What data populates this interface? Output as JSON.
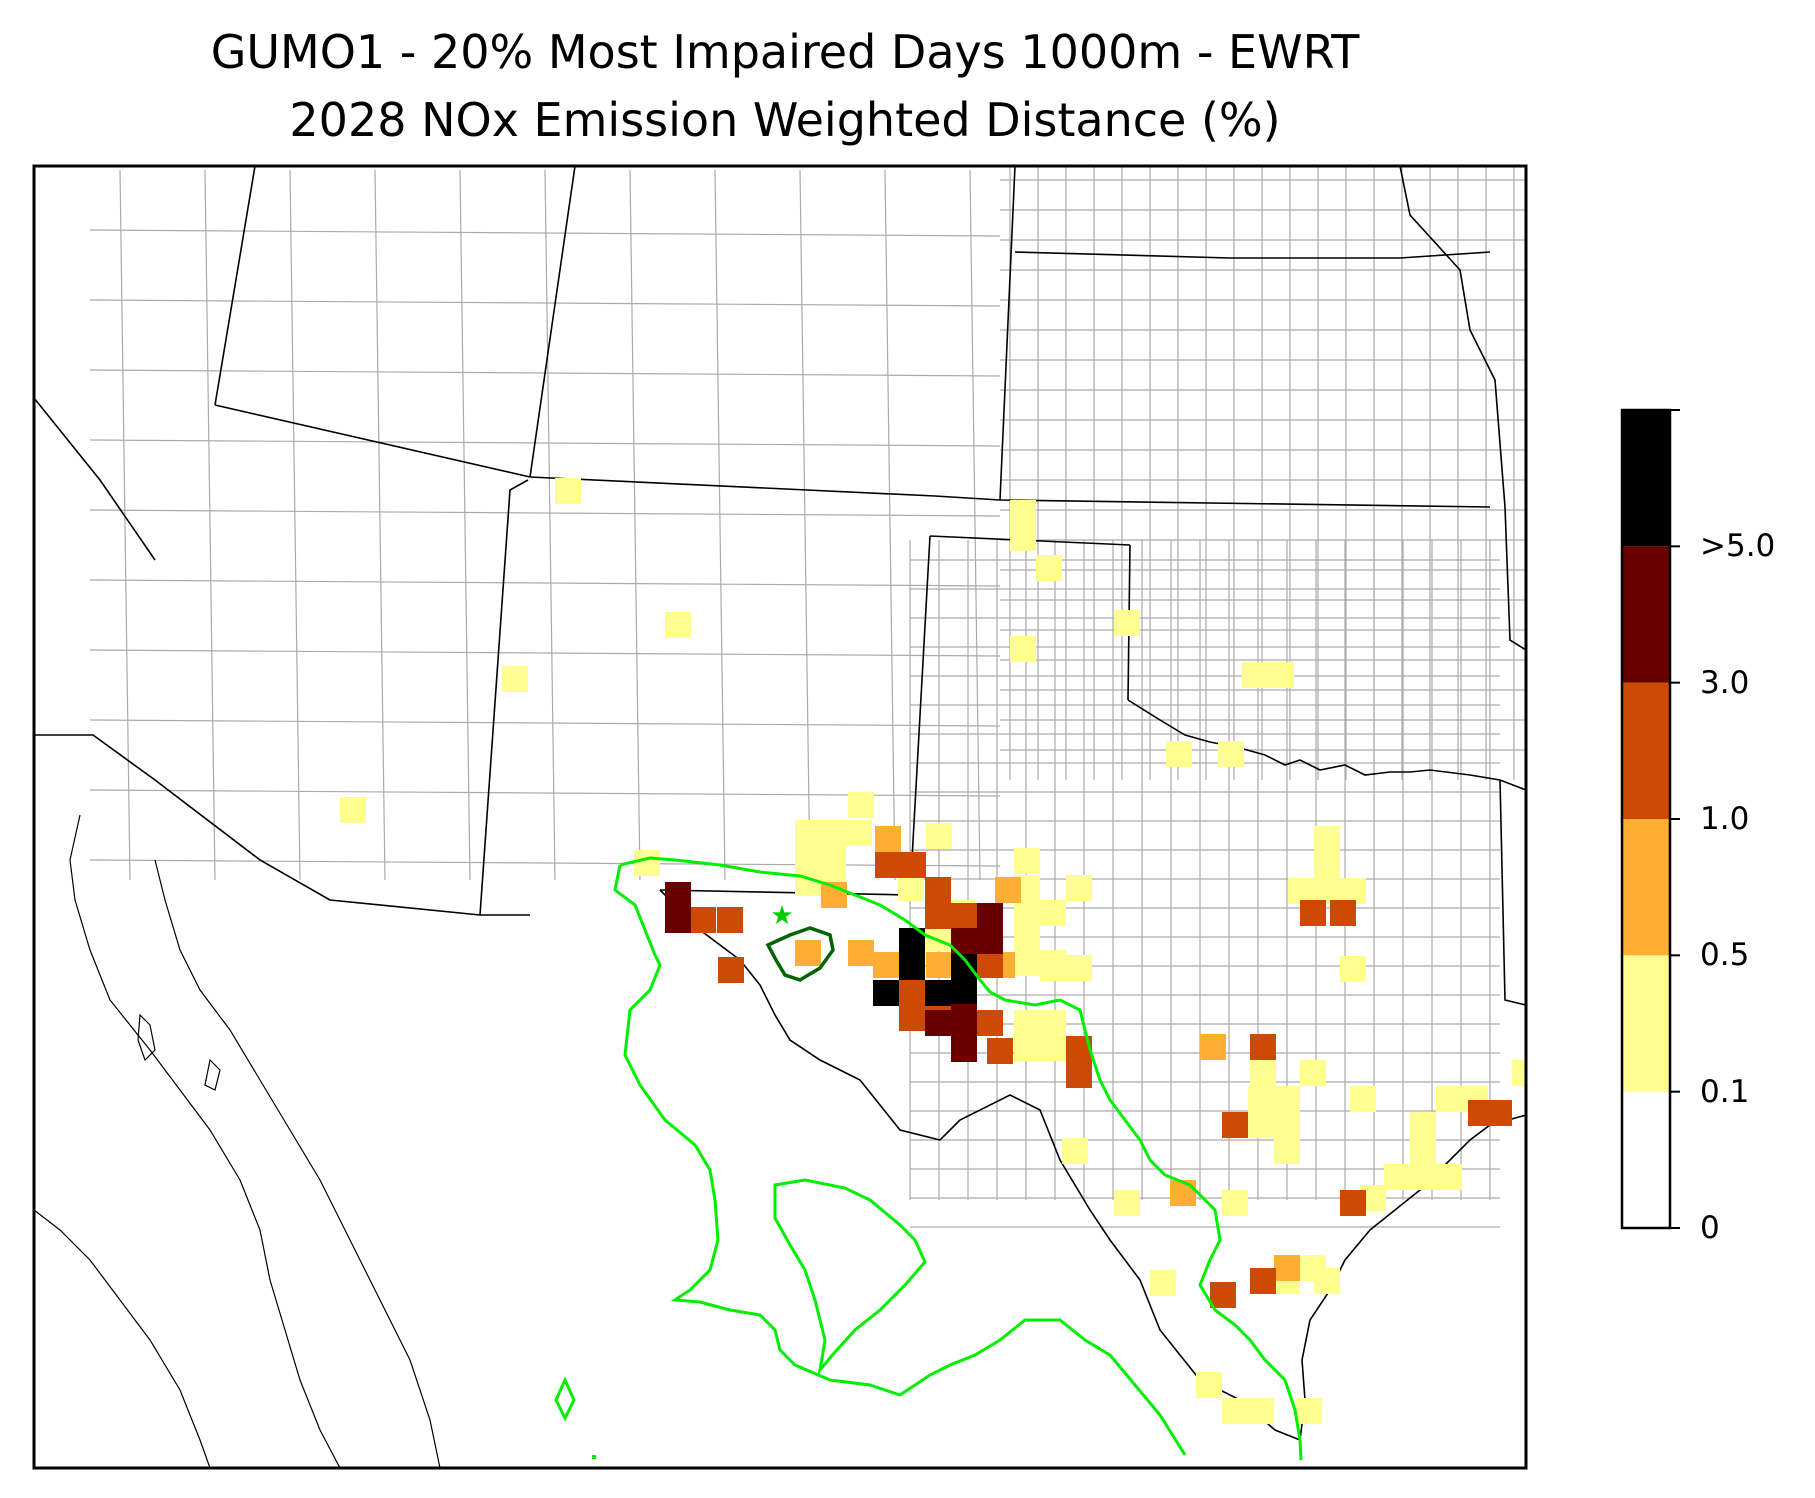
{
  "title": {
    "line1": "GUMO1 - 20% Most Impaired Days 1000m - EWRT",
    "line2": "2028 NOx Emission Weighted Distance (%)"
  },
  "colorbar": {
    "ticks": [
      "0",
      "0.1",
      "0.5",
      "1.0",
      "3.0",
      ">5.0"
    ],
    "bins": [
      {
        "color": "#ffffff"
      },
      {
        "color": "#ffff8f"
      },
      {
        "color": "#fdae33"
      },
      {
        "color": "#cc4a04"
      },
      {
        "color": "#680000"
      },
      {
        "color": "#000000"
      }
    ]
  },
  "colors": {
    "outer_contour": "#00ee00",
    "inner_contour": "#006400",
    "site_marker": "#00cc00",
    "state_border": "#000000",
    "county_line": "#aaaaaa"
  },
  "icons": {
    "site_marker": "star-icon"
  }
}
